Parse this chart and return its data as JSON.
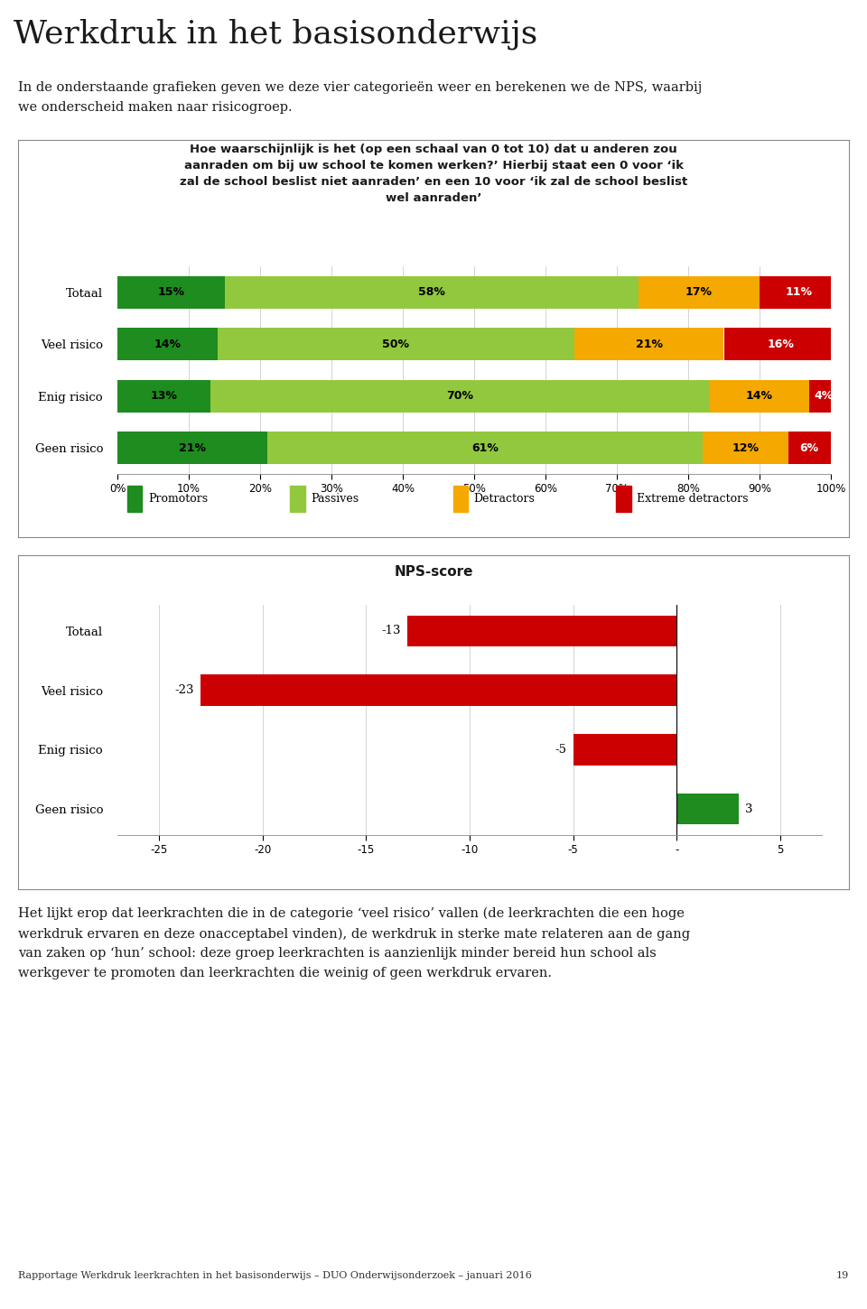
{
  "title_main": "Werkdruk in het basisonderwijs",
  "intro_text": "In de onderstaande grafieken geven we deze vier categorieën weer en berekenen we de NPS, waarbij\nwe onderscheid maken naar risicogroep.",
  "chart1_title": "Hoe waarschijnlijk is het (op een schaal van 0 tot 10) dat u anderen zou\naanraden om bij uw school te komen werken?’ Hierbij staat een 0 voor ‘ik\nzal de school beslist niet aanraden’ en een 10 voor ‘ik zal de school beslist\nwel aanraden’",
  "categories": [
    "Totaal",
    "Veel risico",
    "Enig risico",
    "Geen risico"
  ],
  "promotors": [
    15,
    14,
    13,
    21
  ],
  "passives": [
    58,
    50,
    70,
    61
  ],
  "detractors": [
    17,
    21,
    14,
    12
  ],
  "extreme_detractors": [
    11,
    16,
    4,
    6
  ],
  "color_promotors": "#1e8c1e",
  "color_passives": "#92c83e",
  "color_detractors": "#f5a800",
  "color_extreme": "#cc0000",
  "chart2_title": "NPS-score",
  "nps_categories": [
    "Totaal",
    "Veel risico",
    "Enig risico",
    "Geen risico"
  ],
  "nps_values": [
    -13,
    -23,
    -5,
    3
  ],
  "nps_color_neg": "#cc0000",
  "nps_color_pos": "#1e8c1e",
  "footer_text": "Rapportage Werkdruk leerkrachten in het basisonderwijs – DUO Onderwijsonderzoek – januari 2016",
  "footer_page": "19",
  "body_text": "Het lijkt erop dat leerkrachten die in de categorie ‘veel risico’ vallen (de leerkrachten die een hoge\nwerkdruk ervaren en deze onacceptabel vinden), de werkdruk in sterke mate relateren aan de gang\nvan zaken op ‘hun’ school: deze groep leerkrachten is aanzienlijk minder bereid hun school als\nwerkgever te promoten dan leerkrachten die weinig of geen werkdruk ervaren.",
  "duo_green": "#92c83e",
  "duo_gray": "#58595b",
  "page_bg": "#f0f0f0"
}
